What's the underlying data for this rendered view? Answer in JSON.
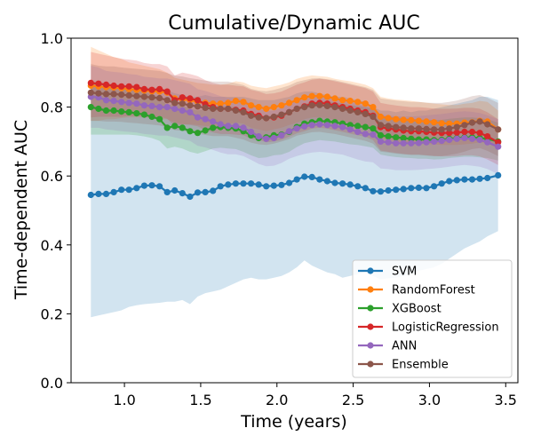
{
  "chart_data": {
    "type": "line",
    "title": "Cumulative/Dynamic AUC",
    "xlabel": "Time (years)",
    "ylabel": "Time-dependent AUC",
    "xlim": [
      0.65,
      3.58
    ],
    "ylim": [
      0.0,
      1.0
    ],
    "xticks": [
      "1.0",
      "1.5",
      "2.0",
      "2.5",
      "3.0",
      "3.5"
    ],
    "yticks": [
      "0.0",
      "0.2",
      "0.4",
      "0.6",
      "0.8",
      "1.0"
    ],
    "legend_position": "lower-right",
    "x": [
      0.78,
      0.83,
      0.88,
      0.93,
      0.98,
      1.03,
      1.08,
      1.13,
      1.18,
      1.23,
      1.28,
      1.33,
      1.38,
      1.43,
      1.48,
      1.53,
      1.58,
      1.63,
      1.68,
      1.73,
      1.78,
      1.83,
      1.88,
      1.93,
      1.98,
      2.03,
      2.08,
      2.13,
      2.18,
      2.23,
      2.28,
      2.33,
      2.38,
      2.43,
      2.48,
      2.53,
      2.58,
      2.63,
      2.68,
      2.73,
      2.78,
      2.83,
      2.88,
      2.93,
      2.98,
      3.03,
      3.08,
      3.13,
      3.18,
      3.23,
      3.28,
      3.33,
      3.38,
      3.45
    ],
    "series": [
      {
        "name": "SVM",
        "color": "#1f77b4",
        "values": [
          0.545,
          0.548,
          0.548,
          0.553,
          0.56,
          0.56,
          0.565,
          0.572,
          0.573,
          0.57,
          0.553,
          0.558,
          0.55,
          0.54,
          0.552,
          0.553,
          0.557,
          0.57,
          0.575,
          0.578,
          0.578,
          0.578,
          0.575,
          0.57,
          0.572,
          0.574,
          0.58,
          0.59,
          0.598,
          0.597,
          0.59,
          0.585,
          0.58,
          0.578,
          0.575,
          0.57,
          0.565,
          0.556,
          0.555,
          0.558,
          0.56,
          0.562,
          0.565,
          0.566,
          0.565,
          0.57,
          0.578,
          0.585,
          0.588,
          0.59,
          0.59,
          0.592,
          0.594,
          0.602
        ],
        "lower": [
          0.19,
          0.195,
          0.2,
          0.205,
          0.21,
          0.22,
          0.225,
          0.228,
          0.23,
          0.232,
          0.235,
          0.235,
          0.24,
          0.228,
          0.25,
          0.26,
          0.265,
          0.27,
          0.28,
          0.29,
          0.3,
          0.305,
          0.3,
          0.3,
          0.305,
          0.31,
          0.32,
          0.335,
          0.355,
          0.34,
          0.33,
          0.32,
          0.315,
          0.305,
          0.31,
          0.315,
          0.32,
          0.31,
          0.3,
          0.303,
          0.305,
          0.31,
          0.315,
          0.325,
          0.33,
          0.335,
          0.345,
          0.36,
          0.375,
          0.39,
          0.4,
          0.41,
          0.425,
          0.44
        ],
        "upper": [
          0.87,
          0.87,
          0.87,
          0.865,
          0.865,
          0.86,
          0.86,
          0.858,
          0.855,
          0.855,
          0.85,
          0.84,
          0.835,
          0.83,
          0.83,
          0.835,
          0.83,
          0.83,
          0.83,
          0.83,
          0.83,
          0.825,
          0.82,
          0.82,
          0.82,
          0.825,
          0.83,
          0.84,
          0.845,
          0.845,
          0.84,
          0.835,
          0.83,
          0.83,
          0.825,
          0.82,
          0.815,
          0.8,
          0.79,
          0.79,
          0.785,
          0.79,
          0.785,
          0.79,
          0.79,
          0.795,
          0.8,
          0.805,
          0.81,
          0.815,
          0.82,
          0.83,
          0.83,
          0.82
        ]
      },
      {
        "name": "RandomForest",
        "color": "#ff7f0e",
        "values": [
          0.862,
          0.86,
          0.858,
          0.857,
          0.855,
          0.852,
          0.85,
          0.848,
          0.846,
          0.845,
          0.842,
          0.825,
          0.822,
          0.82,
          0.815,
          0.812,
          0.81,
          0.81,
          0.812,
          0.818,
          0.815,
          0.805,
          0.8,
          0.795,
          0.8,
          0.805,
          0.812,
          0.82,
          0.828,
          0.832,
          0.832,
          0.83,
          0.825,
          0.82,
          0.818,
          0.815,
          0.81,
          0.8,
          0.772,
          0.768,
          0.765,
          0.763,
          0.762,
          0.76,
          0.758,
          0.756,
          0.753,
          0.752,
          0.752,
          0.755,
          0.756,
          0.76,
          0.758,
          0.735
        ],
        "lower": [
          0.76,
          0.76,
          0.765,
          0.765,
          0.768,
          0.77,
          0.77,
          0.77,
          0.768,
          0.765,
          0.765,
          0.755,
          0.75,
          0.75,
          0.748,
          0.745,
          0.745,
          0.748,
          0.75,
          0.755,
          0.752,
          0.74,
          0.735,
          0.73,
          0.735,
          0.74,
          0.748,
          0.755,
          0.765,
          0.77,
          0.77,
          0.768,
          0.762,
          0.758,
          0.755,
          0.75,
          0.745,
          0.735,
          0.71,
          0.705,
          0.7,
          0.698,
          0.697,
          0.695,
          0.693,
          0.692,
          0.69,
          0.69,
          0.69,
          0.692,
          0.694,
          0.698,
          0.695,
          0.68
        ],
        "upper": [
          0.975,
          0.965,
          0.955,
          0.945,
          0.94,
          0.93,
          0.925,
          0.92,
          0.915,
          0.91,
          0.9,
          0.885,
          0.88,
          0.875,
          0.87,
          0.868,
          0.865,
          0.865,
          0.868,
          0.875,
          0.872,
          0.862,
          0.858,
          0.855,
          0.86,
          0.865,
          0.872,
          0.882,
          0.888,
          0.892,
          0.89,
          0.888,
          0.882,
          0.878,
          0.875,
          0.87,
          0.865,
          0.855,
          0.83,
          0.825,
          0.822,
          0.82,
          0.818,
          0.815,
          0.813,
          0.81,
          0.808,
          0.806,
          0.806,
          0.81,
          0.812,
          0.818,
          0.815,
          0.79
        ]
      },
      {
        "name": "XGBoost",
        "color": "#2ca02c",
        "values": [
          0.8,
          0.795,
          0.79,
          0.79,
          0.787,
          0.785,
          0.782,
          0.778,
          0.772,
          0.765,
          0.74,
          0.745,
          0.74,
          0.73,
          0.725,
          0.732,
          0.74,
          0.742,
          0.74,
          0.738,
          0.73,
          0.718,
          0.71,
          0.712,
          0.718,
          0.72,
          0.728,
          0.742,
          0.752,
          0.756,
          0.76,
          0.758,
          0.756,
          0.752,
          0.748,
          0.745,
          0.742,
          0.738,
          0.718,
          0.715,
          0.712,
          0.71,
          0.708,
          0.706,
          0.706,
          0.704,
          0.705,
          0.708,
          0.71,
          0.712,
          0.712,
          0.71,
          0.708,
          0.7
        ],
        "lower": [
          0.72,
          0.72,
          0.72,
          0.72,
          0.72,
          0.72,
          0.718,
          0.715,
          0.71,
          0.702,
          0.68,
          0.685,
          0.68,
          0.67,
          0.665,
          0.672,
          0.68,
          0.682,
          0.68,
          0.678,
          0.67,
          0.66,
          0.652,
          0.654,
          0.66,
          0.662,
          0.67,
          0.684,
          0.695,
          0.7,
          0.704,
          0.702,
          0.7,
          0.696,
          0.692,
          0.69,
          0.686,
          0.682,
          0.662,
          0.658,
          0.655,
          0.653,
          0.652,
          0.65,
          0.65,
          0.648,
          0.649,
          0.652,
          0.654,
          0.656,
          0.656,
          0.654,
          0.652,
          0.645
        ],
        "upper": [
          0.87,
          0.865,
          0.86,
          0.858,
          0.855,
          0.852,
          0.848,
          0.843,
          0.837,
          0.83,
          0.805,
          0.81,
          0.805,
          0.795,
          0.79,
          0.795,
          0.802,
          0.805,
          0.802,
          0.8,
          0.792,
          0.78,
          0.772,
          0.772,
          0.778,
          0.78,
          0.788,
          0.8,
          0.81,
          0.814,
          0.818,
          0.816,
          0.814,
          0.81,
          0.806,
          0.803,
          0.8,
          0.795,
          0.775,
          0.772,
          0.77,
          0.768,
          0.766,
          0.764,
          0.764,
          0.762,
          0.763,
          0.766,
          0.768,
          0.77,
          0.77,
          0.768,
          0.765,
          0.755
        ]
      },
      {
        "name": "LogisticRegression",
        "color": "#d62728",
        "values": [
          0.87,
          0.868,
          0.865,
          0.862,
          0.86,
          0.86,
          0.858,
          0.852,
          0.85,
          0.852,
          0.845,
          0.82,
          0.828,
          0.825,
          0.82,
          0.808,
          0.8,
          0.795,
          0.795,
          0.792,
          0.79,
          0.78,
          0.775,
          0.768,
          0.77,
          0.775,
          0.785,
          0.795,
          0.802,
          0.81,
          0.812,
          0.81,
          0.805,
          0.8,
          0.795,
          0.79,
          0.785,
          0.775,
          0.742,
          0.738,
          0.735,
          0.732,
          0.73,
          0.73,
          0.728,
          0.726,
          0.725,
          0.725,
          0.726,
          0.728,
          0.728,
          0.725,
          0.715,
          0.698
        ],
        "lower": [
          0.77,
          0.772,
          0.772,
          0.772,
          0.772,
          0.774,
          0.774,
          0.772,
          0.77,
          0.772,
          0.766,
          0.744,
          0.75,
          0.748,
          0.744,
          0.733,
          0.726,
          0.722,
          0.722,
          0.72,
          0.718,
          0.708,
          0.704,
          0.698,
          0.7,
          0.705,
          0.714,
          0.724,
          0.73,
          0.738,
          0.74,
          0.738,
          0.733,
          0.728,
          0.723,
          0.718,
          0.714,
          0.704,
          0.674,
          0.67,
          0.667,
          0.664,
          0.662,
          0.662,
          0.66,
          0.658,
          0.657,
          0.657,
          0.658,
          0.66,
          0.66,
          0.657,
          0.648,
          0.632
        ],
        "upper": [
          0.96,
          0.955,
          0.95,
          0.945,
          0.94,
          0.938,
          0.935,
          0.928,
          0.925,
          0.925,
          0.918,
          0.892,
          0.9,
          0.896,
          0.89,
          0.878,
          0.87,
          0.865,
          0.865,
          0.862,
          0.86,
          0.85,
          0.845,
          0.838,
          0.84,
          0.845,
          0.855,
          0.865,
          0.872,
          0.88,
          0.882,
          0.88,
          0.875,
          0.87,
          0.865,
          0.86,
          0.855,
          0.845,
          0.812,
          0.808,
          0.805,
          0.802,
          0.8,
          0.8,
          0.798,
          0.796,
          0.795,
          0.795,
          0.796,
          0.798,
          0.798,
          0.795,
          0.785,
          0.765
        ]
      },
      {
        "name": "ANN",
        "color": "#9467bd",
        "values": [
          0.83,
          0.828,
          0.82,
          0.818,
          0.815,
          0.812,
          0.81,
          0.805,
          0.803,
          0.8,
          0.8,
          0.795,
          0.79,
          0.785,
          0.77,
          0.765,
          0.758,
          0.75,
          0.745,
          0.745,
          0.74,
          0.728,
          0.715,
          0.708,
          0.71,
          0.718,
          0.73,
          0.738,
          0.744,
          0.748,
          0.75,
          0.748,
          0.745,
          0.742,
          0.735,
          0.728,
          0.722,
          0.72,
          0.7,
          0.698,
          0.695,
          0.695,
          0.695,
          0.696,
          0.698,
          0.7,
          0.702,
          0.705,
          0.708,
          0.71,
          0.708,
          0.705,
          0.698,
          0.685
        ],
        "lower": [
          0.74,
          0.74,
          0.735,
          0.733,
          0.73,
          0.728,
          0.726,
          0.722,
          0.72,
          0.717,
          0.717,
          0.712,
          0.707,
          0.702,
          0.688,
          0.683,
          0.676,
          0.668,
          0.663,
          0.663,
          0.658,
          0.647,
          0.635,
          0.628,
          0.63,
          0.638,
          0.65,
          0.658,
          0.664,
          0.668,
          0.67,
          0.668,
          0.665,
          0.662,
          0.655,
          0.648,
          0.642,
          0.64,
          0.622,
          0.62,
          0.617,
          0.617,
          0.617,
          0.618,
          0.62,
          0.622,
          0.624,
          0.627,
          0.63,
          0.632,
          0.63,
          0.627,
          0.62,
          0.605
        ],
        "upper": [
          0.92,
          0.915,
          0.905,
          0.902,
          0.9,
          0.896,
          0.894,
          0.888,
          0.886,
          0.883,
          0.883,
          0.878,
          0.873,
          0.868,
          0.852,
          0.847,
          0.84,
          0.832,
          0.827,
          0.827,
          0.822,
          0.809,
          0.795,
          0.788,
          0.79,
          0.798,
          0.81,
          0.818,
          0.824,
          0.828,
          0.83,
          0.828,
          0.825,
          0.822,
          0.815,
          0.808,
          0.802,
          0.8,
          0.778,
          0.776,
          0.773,
          0.773,
          0.773,
          0.774,
          0.776,
          0.778,
          0.78,
          0.783,
          0.786,
          0.788,
          0.786,
          0.783,
          0.776,
          0.765
        ]
      },
      {
        "name": "Ensemble",
        "color": "#8c564b",
        "values": [
          0.842,
          0.84,
          0.838,
          0.838,
          0.836,
          0.834,
          0.832,
          0.83,
          0.828,
          0.826,
          0.82,
          0.812,
          0.81,
          0.805,
          0.802,
          0.798,
          0.795,
          0.795,
          0.795,
          0.79,
          0.785,
          0.775,
          0.77,
          0.768,
          0.772,
          0.778,
          0.785,
          0.795,
          0.8,
          0.805,
          0.806,
          0.803,
          0.8,
          0.795,
          0.79,
          0.785,
          0.78,
          0.772,
          0.748,
          0.745,
          0.742,
          0.74,
          0.738,
          0.738,
          0.736,
          0.735,
          0.735,
          0.738,
          0.742,
          0.748,
          0.755,
          0.758,
          0.75,
          0.735
        ],
        "lower": [
          0.76,
          0.76,
          0.758,
          0.758,
          0.757,
          0.755,
          0.753,
          0.751,
          0.749,
          0.747,
          0.741,
          0.733,
          0.731,
          0.726,
          0.723,
          0.719,
          0.716,
          0.716,
          0.716,
          0.711,
          0.706,
          0.697,
          0.692,
          0.69,
          0.694,
          0.7,
          0.707,
          0.717,
          0.722,
          0.727,
          0.728,
          0.725,
          0.722,
          0.717,
          0.712,
          0.707,
          0.702,
          0.694,
          0.671,
          0.668,
          0.665,
          0.663,
          0.661,
          0.661,
          0.659,
          0.658,
          0.658,
          0.661,
          0.665,
          0.671,
          0.678,
          0.681,
          0.673,
          0.658
        ],
        "upper": [
          0.925,
          0.92,
          0.918,
          0.918,
          0.915,
          0.913,
          0.911,
          0.909,
          0.907,
          0.905,
          0.899,
          0.891,
          0.889,
          0.884,
          0.881,
          0.877,
          0.874,
          0.874,
          0.874,
          0.869,
          0.864,
          0.853,
          0.848,
          0.846,
          0.85,
          0.856,
          0.863,
          0.873,
          0.878,
          0.883,
          0.884,
          0.881,
          0.878,
          0.873,
          0.868,
          0.863,
          0.858,
          0.85,
          0.825,
          0.822,
          0.819,
          0.817,
          0.815,
          0.815,
          0.813,
          0.812,
          0.812,
          0.815,
          0.819,
          0.825,
          0.832,
          0.835,
          0.827,
          0.812
        ]
      }
    ]
  }
}
